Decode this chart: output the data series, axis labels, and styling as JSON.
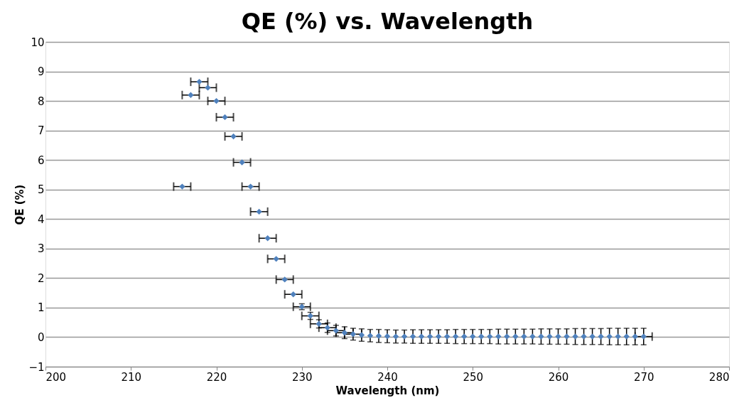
{
  "chart_data": {
    "type": "scatter",
    "title": "QE (%) vs. Wavelength",
    "xlabel": "Wavelength (nm)",
    "ylabel": "QE (%)",
    "x": [
      216,
      217,
      218,
      219,
      220,
      221,
      222,
      223,
      224,
      225,
      226,
      227,
      228,
      229,
      230,
      231,
      232,
      233,
      234,
      235,
      236,
      237,
      238,
      239,
      240,
      241,
      242,
      243,
      244,
      245,
      246,
      247,
      248,
      249,
      250,
      251,
      252,
      253,
      254,
      255,
      256,
      257,
      258,
      259,
      260,
      261,
      262,
      263,
      264,
      265,
      266,
      267,
      268,
      269,
      270
    ],
    "series": [
      {
        "color": "#4f81bd",
        "values": [
          5.1,
          8.2,
          8.65,
          8.45,
          8.0,
          7.45,
          6.8,
          5.92,
          5.1,
          4.25,
          3.35,
          2.65,
          1.95,
          1.45,
          1.03,
          0.72,
          0.45,
          0.32,
          0.22,
          0.15,
          0.1,
          0.07,
          0.05,
          0.04,
          0.03,
          0.02,
          0.02,
          0.02,
          0.02,
          0.02,
          0.02,
          0.02,
          0.02,
          0.02,
          0.02,
          0.02,
          0.02,
          0.02,
          0.02,
          0.02,
          0.02,
          0.02,
          0.02,
          0.02,
          0.02,
          0.02,
          0.02,
          0.02,
          0.02,
          0.02,
          0.02,
          0.02,
          0.02,
          0.02,
          0.02
        ],
        "errors": [
          null,
          null,
          null,
          null,
          null,
          null,
          null,
          null,
          null,
          null,
          null,
          null,
          null,
          null,
          0.1,
          0.12,
          0.14,
          0.16,
          0.18,
          0.2,
          0.2,
          0.21,
          0.21,
          0.22,
          0.22,
          0.22,
          0.22,
          0.23,
          0.23,
          0.23,
          0.23,
          0.23,
          0.24,
          0.24,
          0.24,
          0.24,
          0.24,
          0.25,
          0.25,
          0.25,
          0.25,
          0.25,
          0.26,
          0.26,
          0.26,
          0.26,
          0.27,
          0.27,
          0.27,
          0.27,
          0.28,
          0.28,
          0.28,
          0.28,
          0.28
        ],
        "xerrors": [
          1,
          1,
          1,
          1,
          1,
          1,
          1,
          1,
          1,
          1,
          1,
          1,
          1,
          1,
          1,
          1,
          1,
          1,
          1,
          1,
          1,
          null,
          null,
          null,
          null,
          null,
          null,
          null,
          null,
          null,
          null,
          null,
          null,
          null,
          null,
          null,
          null,
          null,
          null,
          null,
          null,
          null,
          null,
          null,
          null,
          null,
          null,
          null,
          null,
          null,
          null,
          null,
          null,
          null,
          1
        ]
      }
    ],
    "xlim": [
      200,
      280
    ],
    "xticks": [
      200,
      210,
      220,
      230,
      240,
      250,
      260,
      270,
      280
    ],
    "ylim": [
      -1,
      10
    ],
    "yticks": [
      -1,
      0,
      1,
      2,
      3,
      4,
      5,
      6,
      7,
      8,
      9,
      10
    ],
    "grid": "y",
    "marker": "diamond"
  }
}
